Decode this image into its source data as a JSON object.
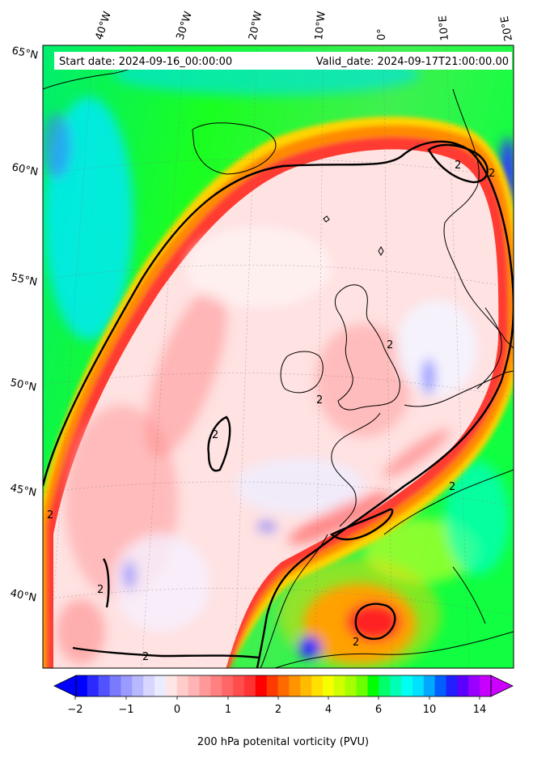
{
  "header": {
    "start_date": "Start date: 2024-09-16_00:00:00",
    "valid_date": "Valid_date: 2024-09-17T21:00:00.00"
  },
  "map": {
    "projection": "conic",
    "region": "North Atlantic / Western Europe",
    "longitude_labels": [
      "40°W",
      "30°W",
      "20°W",
      "10°W",
      "0°",
      "10°E",
      "20°E"
    ],
    "latitude_labels": [
      "65°N",
      "60°N",
      "55°N",
      "50°N",
      "45°N",
      "40°N"
    ],
    "contour_label": "2",
    "contour_level": 2,
    "colors": {
      "low_negative": "#0000ff",
      "near_zero": "#f2f2ff",
      "ridge_core": "#ff3030",
      "jet_orange": "#ff8c00",
      "green_band": "#00ff00",
      "cyan_band": "#00e5ff",
      "coastline": "#000000"
    }
  },
  "colorbar": {
    "ticks": [
      "−2",
      "−1",
      "0",
      "1",
      "2",
      "4",
      "6",
      "10",
      "14"
    ],
    "label": "200 hPa potenital vorticity (PVU)",
    "extend": "both",
    "colors": [
      "#0000ff",
      "#2a2aff",
      "#5252ff",
      "#7a7aff",
      "#9a9aff",
      "#b8b8ff",
      "#d6d6ff",
      "#ececff",
      "#ffe6e6",
      "#ffcccc",
      "#ffb3b3",
      "#ff9999",
      "#ff8080",
      "#ff6666",
      "#ff4d4d",
      "#ff3333",
      "#ff0000",
      "#ff3a00",
      "#ff6a00",
      "#ff9400",
      "#ffbb00",
      "#ffe000",
      "#f5ff00",
      "#d0ff00",
      "#a6ff00",
      "#6bff00",
      "#00ff00",
      "#00ff6a",
      "#00ffb4",
      "#00fff0",
      "#00e0ff",
      "#00a8ff",
      "#0060ff",
      "#2020ff",
      "#5a00ff",
      "#9a00ff",
      "#c800ff"
    ],
    "under_color": "#0000ff",
    "over_color": "#cc00ff"
  }
}
